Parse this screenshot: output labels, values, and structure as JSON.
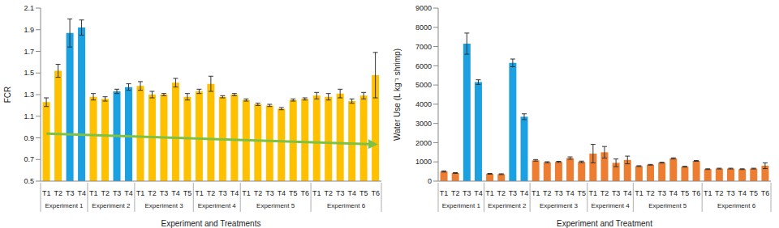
{
  "chart_data": [
    {
      "type": "bar",
      "x_label": "Experiment and Treatments",
      "y_label": "FCR",
      "categories": [
        "T1",
        "T2",
        "T3",
        "T4",
        "T1",
        "T2",
        "T3",
        "T4",
        "T1",
        "T2",
        "T3",
        "T4",
        "T5",
        "T1",
        "T2",
        "T3",
        "T4",
        "T1",
        "T2",
        "T3",
        "T4",
        "T5",
        "T6",
        "T1",
        "T2",
        "T3",
        "T4",
        "T5",
        "T6"
      ],
      "groups": [
        "Experiment 1",
        "Experiment 1",
        "Experiment 1",
        "Experiment 1",
        "Experiment 2",
        "Experiment 2",
        "Experiment 2",
        "Experiment 2",
        "Experiment 3",
        "Experiment 3",
        "Experiment 3",
        "Experiment 3",
        "Experiment 3",
        "Experiment 4",
        "Experiment 4",
        "Experiment 4",
        "Experiment 4",
        "Experiment 5",
        "Experiment 5",
        "Experiment 5",
        "Experiment 5",
        "Experiment 5",
        "Experiment 5",
        "Experiment 6",
        "Experiment 6",
        "Experiment 6",
        "Experiment 6",
        "Experiment 6",
        "Experiment 6"
      ],
      "values": [
        1.23,
        1.52,
        1.87,
        1.92,
        1.28,
        1.26,
        1.33,
        1.37,
        1.38,
        1.3,
        1.3,
        1.41,
        1.28,
        1.33,
        1.4,
        1.28,
        1.3,
        1.25,
        1.21,
        1.2,
        1.17,
        1.25,
        1.26,
        1.29,
        1.28,
        1.31,
        1.24,
        1.29,
        1.48
      ],
      "errors": [
        0.04,
        0.06,
        0.13,
        0.07,
        0.03,
        0.02,
        0.02,
        0.03,
        0.04,
        0.03,
        0.01,
        0.04,
        0.03,
        0.02,
        0.07,
        0.01,
        0.01,
        0.01,
        0.01,
        0.01,
        0.01,
        0.01,
        0.01,
        0.03,
        0.03,
        0.04,
        0.02,
        0.03,
        0.21
      ],
      "colors": [
        "#ffc000",
        "#ffc000",
        "#1ba1e2",
        "#1ba1e2",
        "#ffc000",
        "#ffc000",
        "#1ba1e2",
        "#1ba1e2",
        "#ffc000",
        "#ffc000",
        "#ffc000",
        "#ffc000",
        "#ffc000",
        "#ffc000",
        "#ffc000",
        "#ffc000",
        "#ffc000",
        "#ffc000",
        "#ffc000",
        "#ffc000",
        "#ffc000",
        "#ffc000",
        "#ffc000",
        "#ffc000",
        "#ffc000",
        "#ffc000",
        "#ffc000",
        "#ffc000",
        "#ffc000"
      ],
      "ylim": [
        0.5,
        2.1
      ],
      "yticks": [
        0.5,
        0.7,
        0.9,
        1.1,
        1.3,
        1.5,
        1.7,
        1.9,
        2.1
      ],
      "grid": false,
      "trend_arrow": {
        "y_start": 0.94,
        "y_end": 0.84,
        "color": "#7dc242"
      }
    },
    {
      "type": "bar",
      "x_label": "Experiment and Treatment",
      "y_label": "Water Use (L kg⁻¹ shrimp)",
      "categories": [
        "T1",
        "T2",
        "T3",
        "T4",
        "T1",
        "T2",
        "T3",
        "T4",
        "T1",
        "T2",
        "T3",
        "T4",
        "T5",
        "T1",
        "T2",
        "T3",
        "T4",
        "T1",
        "T2",
        "T3",
        "T4",
        "T5",
        "T6",
        "T1",
        "T2",
        "T3",
        "T4",
        "T5",
        "T6"
      ],
      "groups": [
        "Experiment 1",
        "Experiment 1",
        "Experiment 1",
        "Experiment 1",
        "Experiment 2",
        "Experiment 2",
        "Experiment 2",
        "Experiment 2",
        "Experiment 3",
        "Experiment 3",
        "Experiment 3",
        "Experiment 3",
        "Experiment 3",
        "Experiment 4",
        "Experiment 4",
        "Experiment 4",
        "Experiment 4",
        "Experiment 5",
        "Experiment 5",
        "Experiment 5",
        "Experiment 5",
        "Experiment 5",
        "Experiment 5",
        "Experiment 6",
        "Experiment 6",
        "Experiment 6",
        "Experiment 6",
        "Experiment 6",
        "Experiment 6"
      ],
      "values": [
        500,
        420,
        7150,
        5150,
        380,
        360,
        6150,
        3350,
        1080,
        980,
        1000,
        1200,
        1000,
        1430,
        1500,
        950,
        1100,
        780,
        850,
        960,
        1180,
        750,
        1050,
        620,
        650,
        650,
        620,
        650,
        800
      ],
      "errors": [
        30,
        20,
        550,
        120,
        20,
        20,
        200,
        150,
        40,
        30,
        30,
        60,
        40,
        480,
        300,
        200,
        200,
        20,
        20,
        20,
        30,
        20,
        20,
        20,
        20,
        20,
        20,
        20,
        150
      ],
      "colors": [
        "#ed7d31",
        "#ed7d31",
        "#1ba1e2",
        "#1ba1e2",
        "#ed7d31",
        "#ed7d31",
        "#1ba1e2",
        "#1ba1e2",
        "#ed7d31",
        "#ed7d31",
        "#ed7d31",
        "#ed7d31",
        "#ed7d31",
        "#ed7d31",
        "#ed7d31",
        "#ed7d31",
        "#ed7d31",
        "#ed7d31",
        "#ed7d31",
        "#ed7d31",
        "#ed7d31",
        "#ed7d31",
        "#ed7d31",
        "#ed7d31",
        "#ed7d31",
        "#ed7d31",
        "#ed7d31",
        "#ed7d31",
        "#ed7d31"
      ],
      "ylim": [
        0,
        9000
      ],
      "yticks": [
        0,
        1000,
        2000,
        3000,
        4000,
        5000,
        6000,
        7000,
        8000,
        9000
      ],
      "grid": false
    }
  ]
}
